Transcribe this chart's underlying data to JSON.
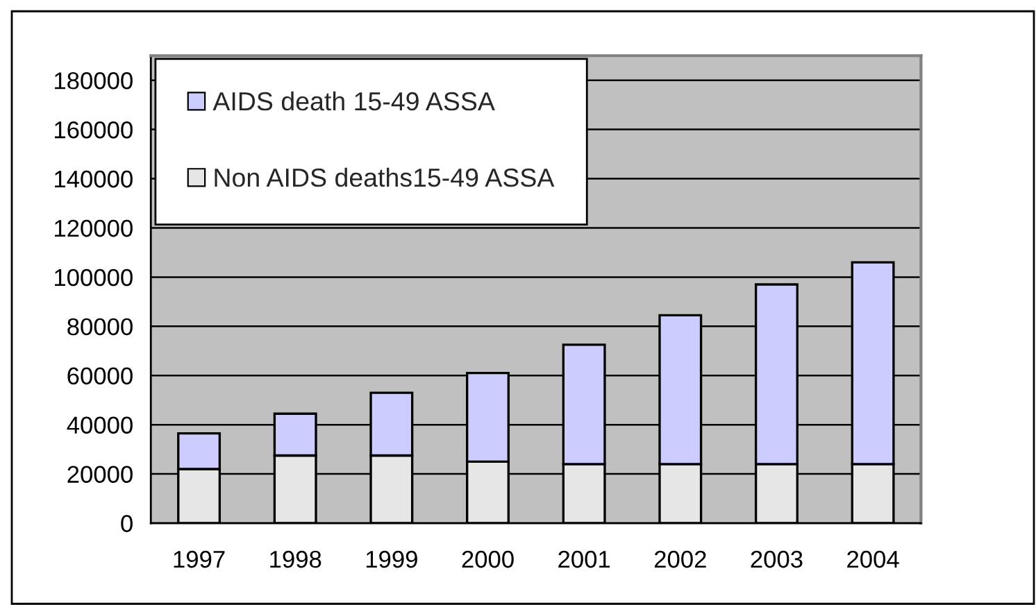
{
  "chart_data": {
    "type": "bar",
    "stacked": true,
    "categories": [
      "1997",
      "1998",
      "1999",
      "2000",
      "2001",
      "2002",
      "2003",
      "2004"
    ],
    "series": [
      {
        "name": "Non AIDS deaths15-49 ASSA",
        "color": "#e6e6e6",
        "values": [
          22000,
          27500,
          27500,
          25000,
          24000,
          24000,
          24000,
          24000
        ]
      },
      {
        "name": "AIDS death 15-49 ASSA",
        "color": "#ccccff",
        "values": [
          14500,
          17000,
          25500,
          36000,
          48500,
          60500,
          73000,
          82000
        ]
      }
    ],
    "ylim": [
      0,
      190000
    ],
    "yticks": [
      0,
      20000,
      40000,
      60000,
      80000,
      100000,
      120000,
      140000,
      160000,
      180000
    ],
    "grid": "y",
    "legend": "top left"
  }
}
